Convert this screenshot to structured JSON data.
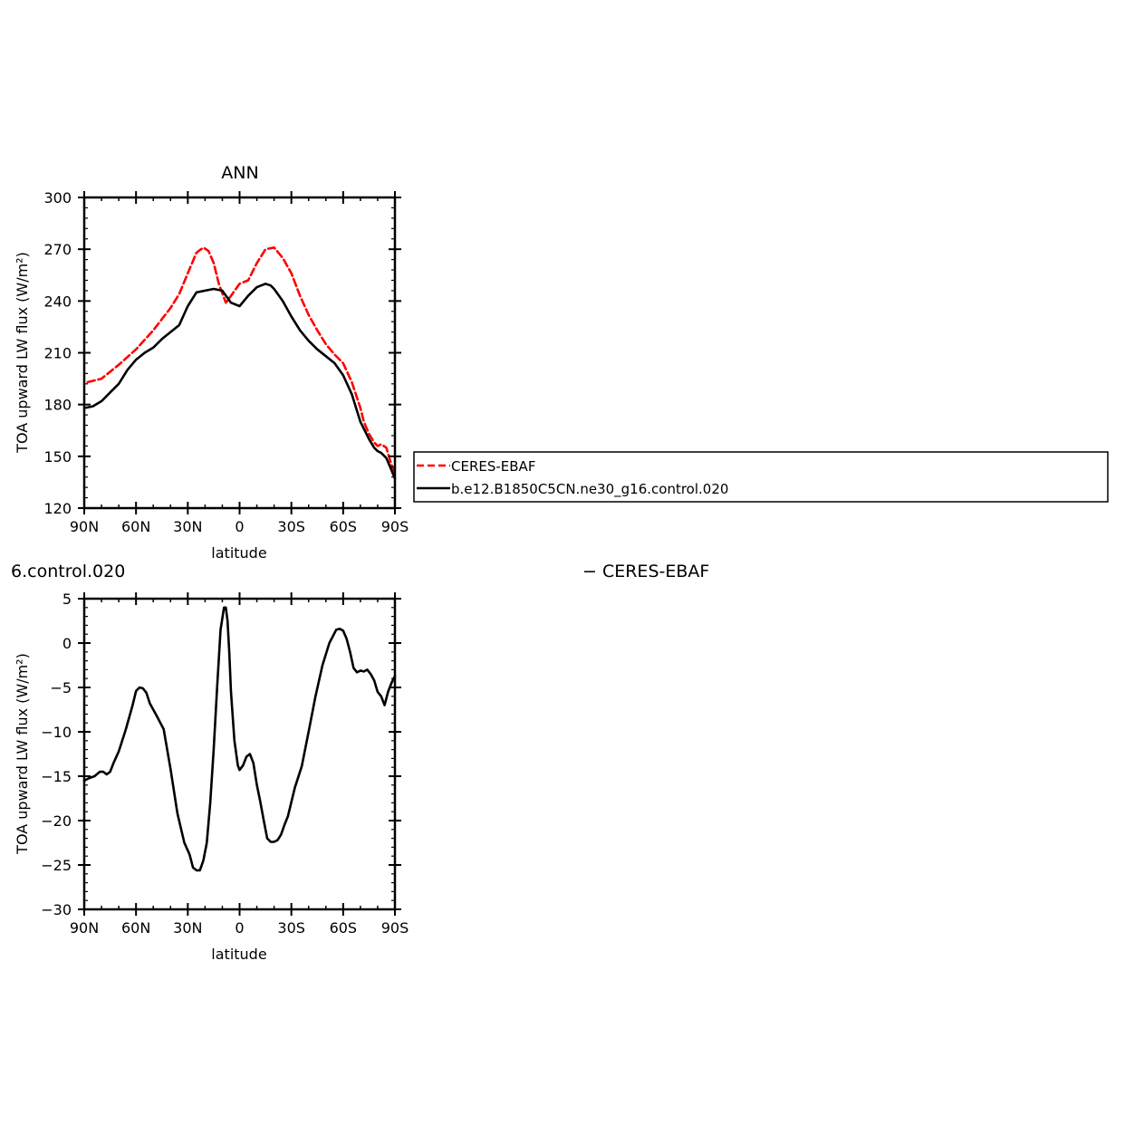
{
  "figure": {
    "legend_entries": [
      "CERES-EBAF",
      "b.e12.B1850C5CN.ne30_g16.control.020"
    ],
    "bottom_title_left": "6.control.020",
    "bottom_title_right": "− CERES-EBAF"
  },
  "chart_data": [
    {
      "type": "line",
      "title": "ANN",
      "xlabel": "latitude",
      "ylabel": "TOA upward LW flux (W/m²)",
      "xlim": [
        90,
        -90
      ],
      "ylim": [
        120,
        300
      ],
      "x_ticks": [
        90,
        60,
        30,
        0,
        -30,
        -60,
        -90
      ],
      "x_tick_labels": [
        "90N",
        "60N",
        "30N",
        "0",
        "30S",
        "60S",
        "90S"
      ],
      "y_ticks": [
        120,
        150,
        180,
        210,
        240,
        270,
        300
      ],
      "y_tick_labels": [
        "120",
        "150",
        "180",
        "210",
        "240",
        "270",
        "300"
      ],
      "legend_position": "right-outside",
      "series": [
        {
          "name": "CERES-EBAF",
          "color": "#ff0000",
          "dash": "dashed",
          "x": [
            88,
            80,
            70,
            60,
            50,
            40,
            35,
            30,
            25,
            21,
            18,
            15,
            12,
            8,
            5,
            0,
            -5,
            -10,
            -15,
            -20,
            -25,
            -30,
            -35,
            -40,
            -45,
            -50,
            -55,
            -60,
            -65,
            -70,
            -72,
            -75,
            -78,
            -80,
            -82,
            -85,
            -88,
            -90
          ],
          "y": [
            193,
            195,
            203,
            212,
            223,
            236,
            244,
            256,
            268,
            271,
            269,
            262,
            250,
            239,
            243,
            250,
            252,
            262,
            270,
            271,
            265,
            256,
            243,
            232,
            223,
            215,
            209,
            204,
            193,
            178,
            170,
            163,
            158,
            156,
            157,
            155,
            145,
            140
          ]
        },
        {
          "name": "b.e12.B1850C5CN.ne30_g16.control.020",
          "color": "#000000",
          "dash": "solid",
          "x": [
            90,
            85,
            80,
            75,
            70,
            65,
            60,
            55,
            50,
            45,
            40,
            35,
            30,
            25,
            20,
            15,
            10,
            5,
            0,
            -5,
            -10,
            -15,
            -18,
            -20,
            -25,
            -30,
            -35,
            -40,
            -45,
            -50,
            -55,
            -60,
            -65,
            -70,
            -75,
            -78,
            -80,
            -82,
            -85,
            -88,
            -90
          ],
          "y": [
            178,
            179,
            182,
            187,
            192,
            200,
            206,
            210,
            213,
            218,
            222,
            226,
            237,
            245,
            246,
            247,
            246,
            239,
            237,
            243,
            248,
            250,
            249,
            247,
            240,
            231,
            223,
            217,
            212,
            208,
            204,
            197,
            186,
            170,
            160,
            155,
            153,
            152,
            149,
            142,
            137
          ]
        }
      ]
    },
    {
      "type": "line",
      "title": "",
      "xlabel": "latitude",
      "ylabel": "TOA upward LW flux (W/m²)",
      "xlim": [
        90,
        -90
      ],
      "ylim": [
        -30,
        5
      ],
      "x_ticks": [
        90,
        60,
        30,
        0,
        -30,
        -60,
        -90
      ],
      "x_tick_labels": [
        "90N",
        "60N",
        "30N",
        "0",
        "30S",
        "60S",
        "90S"
      ],
      "y_ticks": [
        5,
        0,
        -5,
        -10,
        -15,
        -20,
        -25,
        -30
      ],
      "y_tick_labels": [
        "5",
        "0",
        "−5",
        "−10",
        "−15",
        "−20",
        "−25",
        "−30"
      ],
      "series": [
        {
          "color": "#000000",
          "dash": "solid",
          "x": [
            90,
            87,
            84,
            81,
            79,
            77,
            75,
            73,
            70,
            66,
            62,
            60,
            58,
            56,
            54,
            52,
            48,
            44,
            40,
            36,
            32,
            29,
            27,
            25,
            23,
            21,
            19,
            17,
            15,
            13,
            11,
            9,
            8,
            7,
            6,
            5,
            3,
            1,
            0,
            -2,
            -4,
            -6,
            -8,
            -10,
            -12,
            -14,
            -16,
            -18,
            -20,
            -22,
            -24,
            -26,
            -28,
            -32,
            -36,
            -40,
            -44,
            -48,
            -52,
            -56,
            -58,
            -60,
            -62,
            -64,
            -66,
            -68,
            -70,
            -72,
            -74,
            -76,
            -78,
            -80,
            -82,
            -84,
            -86,
            -88,
            -90
          ],
          "y": [
            -15.5,
            -15.2,
            -15.0,
            -14.5,
            -14.5,
            -14.8,
            -14.5,
            -13.5,
            -12.2,
            -9.8,
            -7.0,
            -5.4,
            -5.0,
            -5.1,
            -5.6,
            -6.8,
            -8.2,
            -9.7,
            -14.2,
            -19.2,
            -22.5,
            -23.8,
            -25.3,
            -25.6,
            -25.6,
            -24.5,
            -22.5,
            -18.0,
            -12.0,
            -5.0,
            1.5,
            4.0,
            4.0,
            2.5,
            -1.0,
            -5.5,
            -11.0,
            -13.8,
            -14.3,
            -13.8,
            -12.8,
            -12.5,
            -13.5,
            -16.0,
            -17.9,
            -20.0,
            -22.0,
            -22.4,
            -22.4,
            -22.2,
            -21.6,
            -20.5,
            -19.5,
            -16.3,
            -13.9,
            -10.0,
            -6.0,
            -2.5,
            0.0,
            1.5,
            1.6,
            1.4,
            0.5,
            -1.0,
            -2.8,
            -3.3,
            -3.1,
            -3.2,
            -3.0,
            -3.5,
            -4.2,
            -5.5,
            -6.0,
            -7.0,
            -5.5,
            -4.5,
            -3.7
          ]
        }
      ]
    }
  ]
}
